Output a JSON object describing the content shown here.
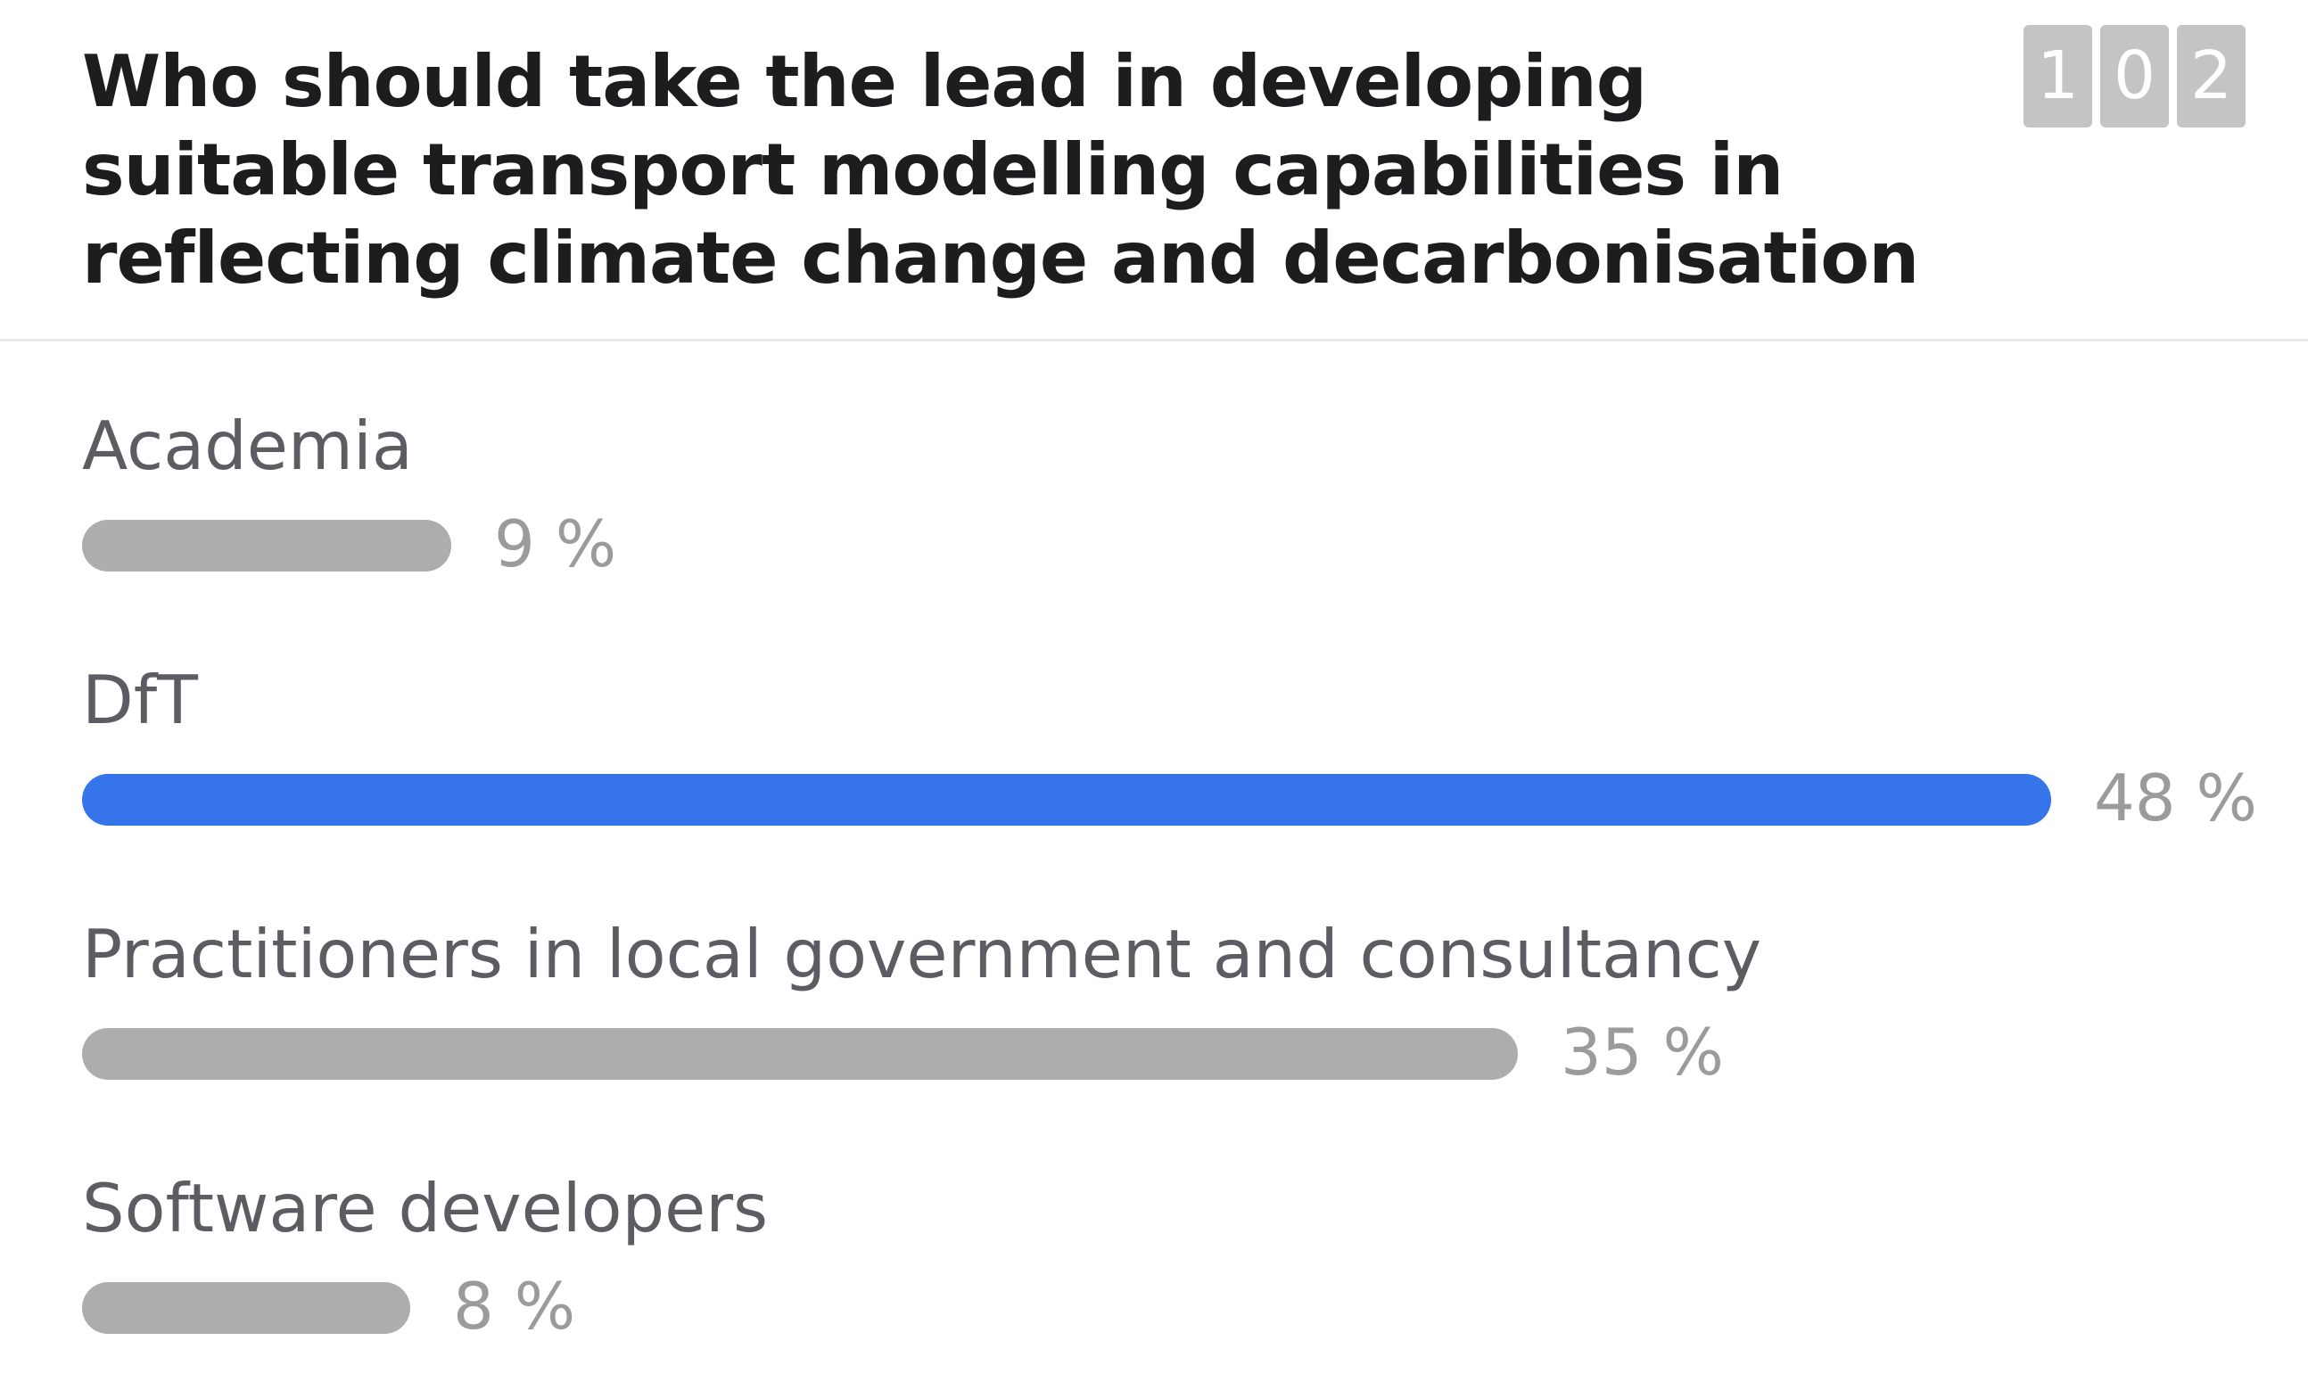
{
  "poll": {
    "title": "Who should take the lead in developing suitable transport modelling capabilities in reflecting climate change and decarbonisation",
    "response_count_digits": [
      "1",
      "0",
      "2"
    ],
    "colors": {
      "leader_bar": "#3674ea",
      "other_bar": "#adadad",
      "label_text": "#5b5d63",
      "value_text": "#9b9b9b",
      "title_text": "#1d1d1f",
      "counter_box": "#c4c4c4"
    }
  },
  "chart_data": {
    "type": "bar",
    "orientation": "horizontal",
    "title": "Who should take the lead in developing suitable transport modelling capabilities in reflecting climate change and decarbonisation",
    "categories": [
      "Academia",
      "DfT",
      "Practitioners in local government and consultancy",
      "Software developers"
    ],
    "values": [
      9,
      48,
      35,
      8
    ],
    "value_labels": [
      "9 %",
      "48 %",
      "35 %",
      "8 %"
    ],
    "unit": "%",
    "highlighted_category": "DfT",
    "xlim": [
      0,
      48
    ],
    "grid": false,
    "legend": "none"
  }
}
